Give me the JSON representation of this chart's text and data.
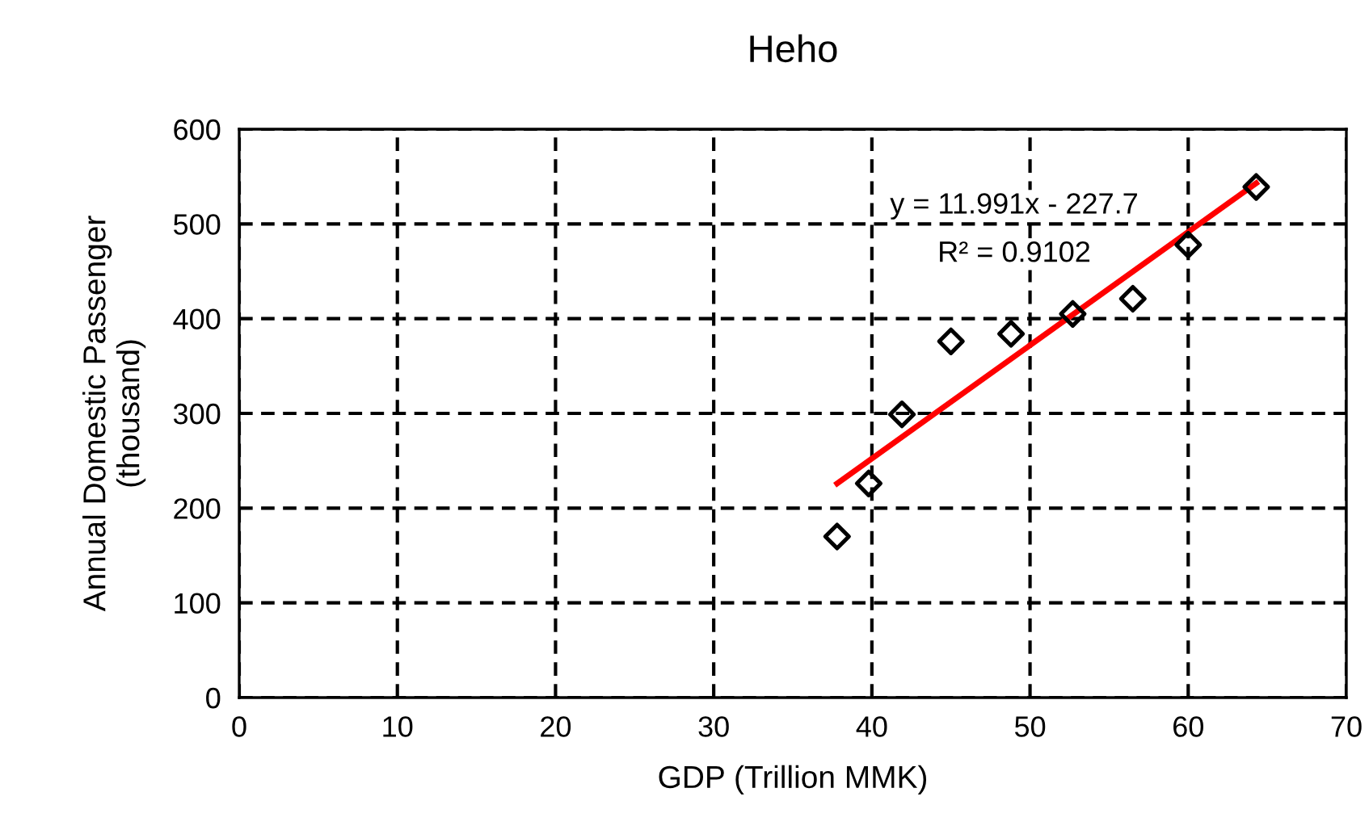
{
  "chart_data": {
    "type": "scatter",
    "title": "Heho",
    "xlabel": "GDP (Trillion MMK)",
    "ylabel": "Annual Domestic Passenger\n(thousand)",
    "xlim": [
      0,
      70
    ],
    "xticks": [
      0,
      10,
      20,
      30,
      40,
      50,
      60,
      70
    ],
    "ylim": [
      0,
      600
    ],
    "yticks": [
      0,
      100,
      200,
      300,
      400,
      500,
      600
    ],
    "grid": true,
    "legend": false,
    "series": [
      {
        "color": "#000000",
        "marker": "diamond",
        "x": [
          37.8,
          39.8,
          41.9,
          45.0,
          48.8,
          52.7,
          56.5,
          60.0,
          64.3
        ],
        "values": [
          170,
          226,
          299,
          376,
          384,
          405,
          421,
          478,
          539
        ]
      },
      {
        "type": "line",
        "color": "#ff0000",
        "marker": "none",
        "line_style": "solid",
        "x": [
          37.8,
          64.3
        ],
        "values": [
          226,
          543
        ]
      }
    ],
    "annotations": [
      "y = 11.991x - 227.7",
      "R² = 0.9102"
    ]
  }
}
